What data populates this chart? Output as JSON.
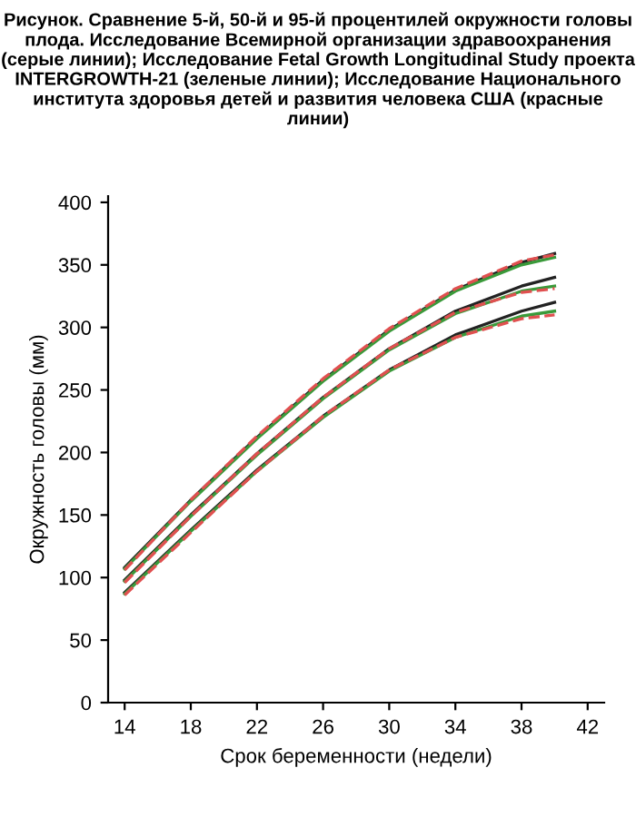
{
  "chart_data": {
    "type": "line",
    "title": "Рисунок. Сравнение 5-й, 50-й и 95-й процентилей окружности головы плода. Исследование Всемирной организации здравоохранения (серые линии); Исследование Fetal Growth Longitudinal Study проекта INTERGROWTH-21 (зеленые линии); Исследование Национального института здоровья детей и развития человека США (красные линии)",
    "xlabel": "Срок беременности (недели)",
    "ylabel": "Окружность головы (мм)",
    "x": [
      14,
      18,
      22,
      26,
      30,
      34,
      38,
      40
    ],
    "xlim": [
      13,
      43
    ],
    "ylim": [
      0,
      405
    ],
    "xticks": [
      14,
      18,
      22,
      26,
      30,
      34,
      38,
      42
    ],
    "yticks": [
      0,
      50,
      100,
      150,
      200,
      250,
      300,
      350,
      400
    ],
    "grid": false,
    "legend": false,
    "marker": "none",
    "series": [
      {
        "color": "#222222",
        "line_style": "solid",
        "values": [
          108,
          162,
          212,
          258,
          298,
          330,
          352,
          359
        ]
      },
      {
        "color": "#222222",
        "line_style": "solid",
        "values": [
          98,
          150,
          199,
          244,
          283,
          313,
          333,
          340
        ]
      },
      {
        "color": "#222222",
        "line_style": "solid",
        "values": [
          88,
          138,
          186,
          229,
          266,
          294,
          313,
          320
        ]
      },
      {
        "color": "#3a9a3a",
        "line_style": "solid",
        "values": [
          107,
          161,
          211,
          257,
          297,
          329,
          350,
          356
        ]
      },
      {
        "color": "#3a9a3a",
        "line_style": "solid",
        "values": [
          97,
          149,
          198,
          243,
          282,
          311,
          329,
          333
        ]
      },
      {
        "color": "#3a9a3a",
        "line_style": "solid",
        "values": [
          87,
          137,
          185,
          228,
          265,
          292,
          309,
          313
        ]
      },
      {
        "color": "#e05050",
        "line_style": "dashed",
        "values": [
          106,
          162,
          213,
          259,
          299,
          331,
          353,
          358
        ]
      },
      {
        "color": "#e05050",
        "line_style": "dashed",
        "values": [
          96,
          149,
          199,
          244,
          283,
          312,
          328,
          331
        ]
      },
      {
        "color": "#e05050",
        "line_style": "dashed",
        "values": [
          86,
          136,
          185,
          229,
          266,
          292,
          307,
          310
        ]
      }
    ]
  }
}
